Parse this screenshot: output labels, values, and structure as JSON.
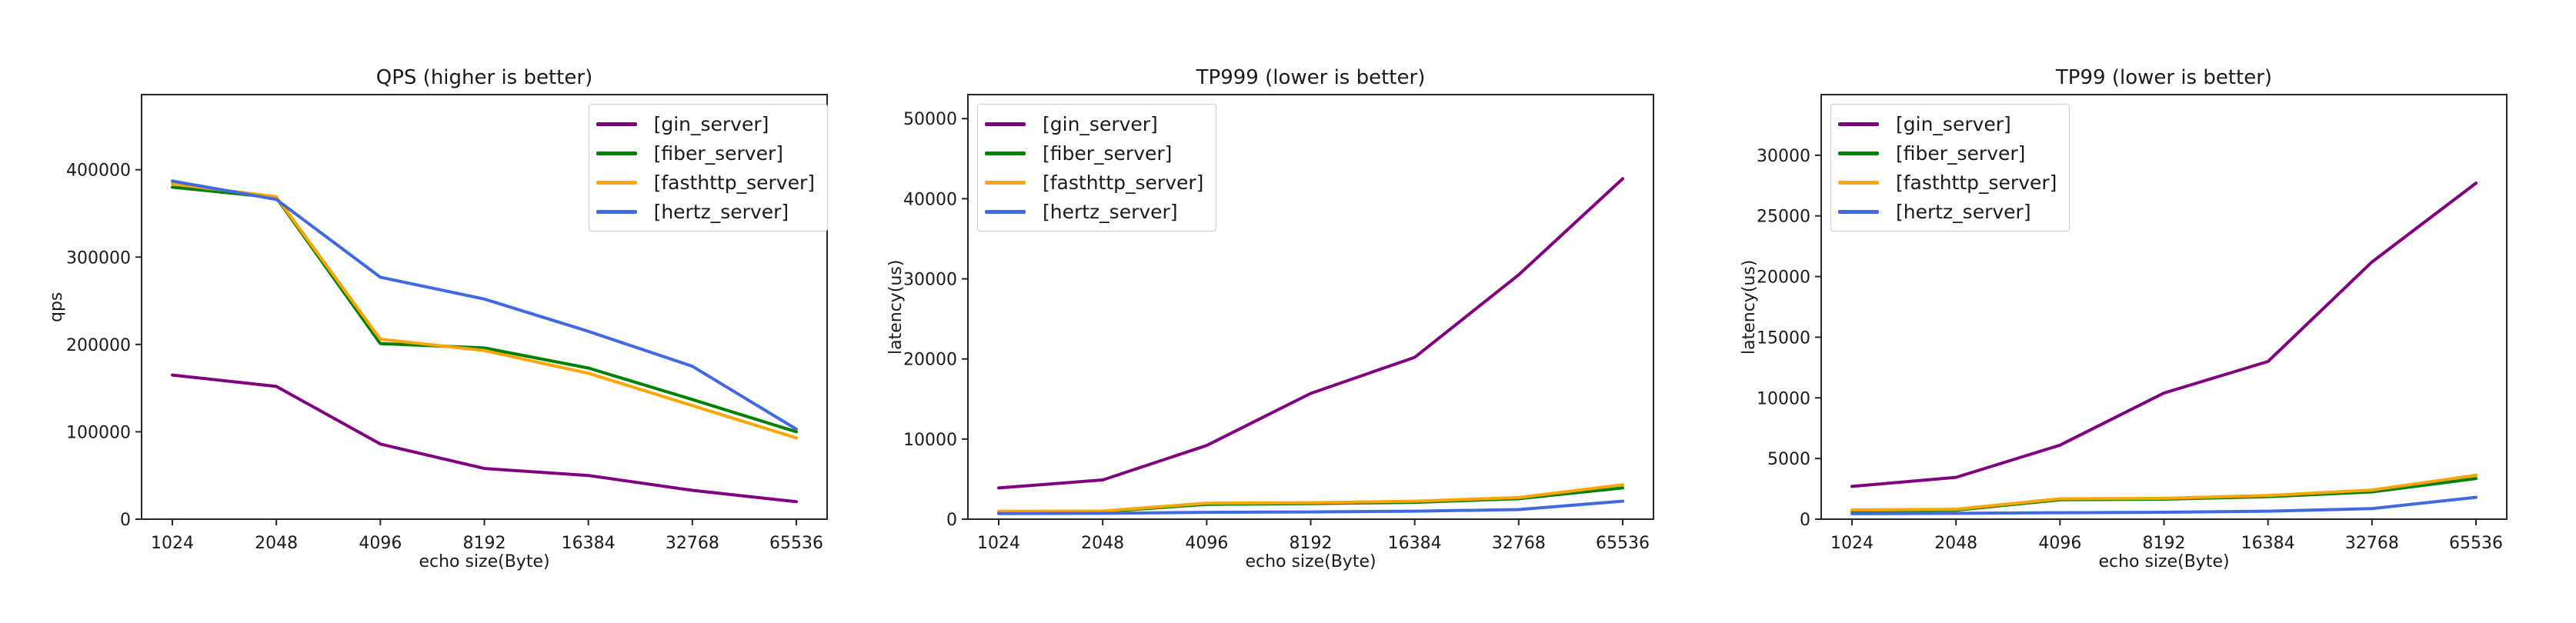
{
  "figure": {
    "background": "#ffffff",
    "text_color": "#1a1a1a",
    "spine_color": "#262626"
  },
  "chart_data": [
    {
      "type": "line",
      "title": "QPS (higher is better)",
      "xlabel": "echo size(Byte)",
      "ylabel": "qps",
      "categories": [
        "1024",
        "2048",
        "4096",
        "8192",
        "16384",
        "32768",
        "65536"
      ],
      "x": [
        1024,
        2048,
        4096,
        8192,
        16384,
        32768,
        65536
      ],
      "ylim": [
        0,
        486000
      ],
      "yticks": [
        0,
        100000,
        200000,
        300000,
        400000
      ],
      "grid": false,
      "legend_position": "upper-right",
      "series": [
        {
          "name": "[gin_server]",
          "color": "#800080",
          "values": [
            165000,
            152000,
            86000,
            58000,
            50000,
            33000,
            20000
          ]
        },
        {
          "name": "[fiber_server]",
          "color": "#008000",
          "values": [
            380000,
            368000,
            201000,
            196000,
            173000,
            137000,
            100000
          ]
        },
        {
          "name": "[fasthttp_server]",
          "color": "#FFA500",
          "values": [
            384000,
            369000,
            206000,
            193000,
            167000,
            130000,
            93000
          ]
        },
        {
          "name": "[hertz_server]",
          "color": "#4169E1",
          "values": [
            387000,
            366000,
            277000,
            252000,
            215000,
            175000,
            103000
          ]
        }
      ]
    },
    {
      "type": "line",
      "title": "TP999 (lower is better)",
      "xlabel": "echo size(Byte)",
      "ylabel": "latency(us)",
      "categories": [
        "1024",
        "2048",
        "4096",
        "8192",
        "16384",
        "32768",
        "65536"
      ],
      "x": [
        1024,
        2048,
        4096,
        8192,
        16384,
        32768,
        65536
      ],
      "ylim": [
        0,
        53000
      ],
      "yticks": [
        0,
        10000,
        20000,
        30000,
        40000,
        50000
      ],
      "grid": false,
      "legend_position": "upper-left",
      "series": [
        {
          "name": "[gin_server]",
          "color": "#800080",
          "values": [
            3900,
            4900,
            9200,
            15700,
            20200,
            30500,
            42500
          ]
        },
        {
          "name": "[fiber_server]",
          "color": "#008000",
          "values": [
            900,
            950,
            1850,
            1950,
            2100,
            2550,
            3900
          ]
        },
        {
          "name": "[fasthttp_server]",
          "color": "#FFA500",
          "values": [
            980,
            1020,
            2000,
            2050,
            2250,
            2700,
            4300
          ]
        },
        {
          "name": "[hertz_server]",
          "color": "#4169E1",
          "values": [
            700,
            730,
            850,
            900,
            1000,
            1200,
            2250
          ]
        }
      ]
    },
    {
      "type": "line",
      "title": "TP99 (lower is better)",
      "xlabel": "echo size(Byte)",
      "ylabel": "latency(us)",
      "categories": [
        "1024",
        "2048",
        "4096",
        "8192",
        "16384",
        "32768",
        "65536"
      ],
      "x": [
        1024,
        2048,
        4096,
        8192,
        16384,
        32768,
        65536
      ],
      "ylim": [
        0,
        35000
      ],
      "yticks": [
        0,
        5000,
        10000,
        15000,
        20000,
        25000,
        30000
      ],
      "grid": false,
      "legend_position": "upper-left",
      "series": [
        {
          "name": "[gin_server]",
          "color": "#800080",
          "values": [
            2700,
            3450,
            6100,
            10400,
            13000,
            21200,
            27700
          ]
        },
        {
          "name": "[fiber_server]",
          "color": "#008000",
          "values": [
            700,
            750,
            1600,
            1650,
            1850,
            2250,
            3350
          ]
        },
        {
          "name": "[fasthttp_server]",
          "color": "#FFA500",
          "values": [
            760,
            820,
            1680,
            1720,
            1950,
            2400,
            3620
          ]
        },
        {
          "name": "[hertz_server]",
          "color": "#4169E1",
          "values": [
            450,
            480,
            530,
            570,
            660,
            870,
            1800
          ]
        }
      ]
    }
  ]
}
